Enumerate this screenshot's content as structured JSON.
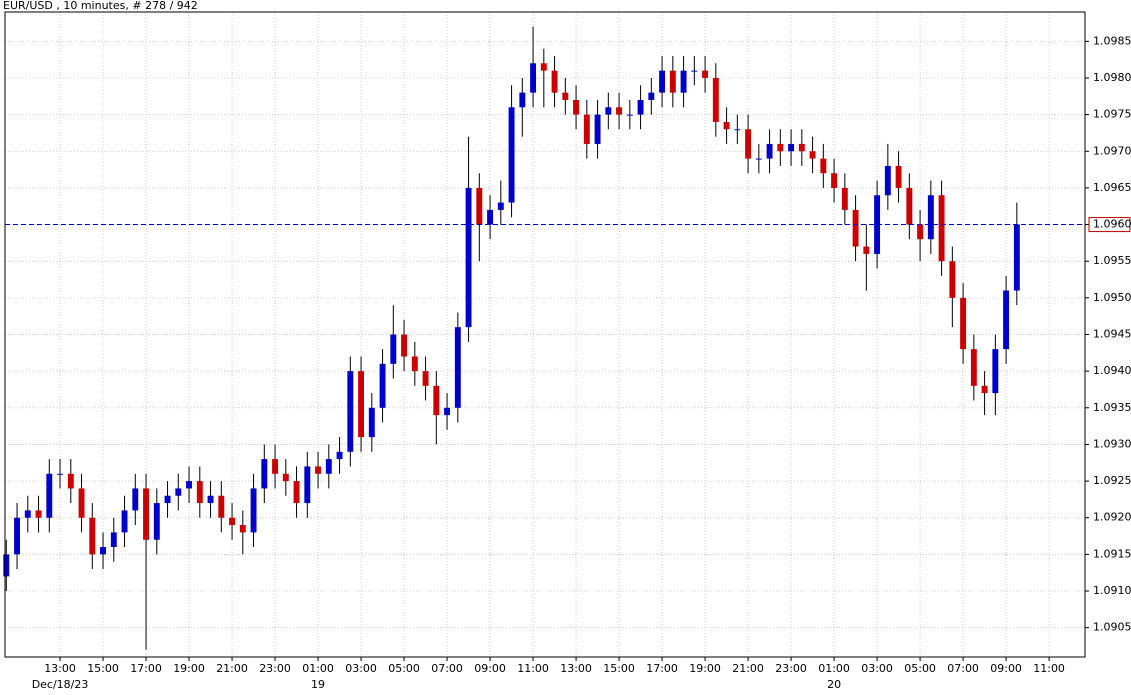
{
  "chart_data": {
    "type": "candlestick",
    "title": "EUR/USD , 10 minutes, # 278 / 942",
    "x": [
      10.5,
      11,
      11.5,
      12,
      12.5,
      13,
      13.5,
      14,
      14.5,
      15,
      15.5,
      16,
      16.5,
      17,
      17.5,
      18,
      18.5,
      19,
      19.5,
      20,
      20.5,
      21,
      21.5,
      22,
      22.5,
      23,
      23.5,
      24,
      24.5,
      25,
      25.5,
      26,
      26.5,
      27,
      27.5,
      28,
      28.5,
      29,
      29.5,
      30,
      30.5,
      31,
      31.5,
      32,
      32.5,
      33,
      33.5,
      34,
      34.5,
      35,
      35.5,
      36,
      36.5,
      37,
      37.5,
      38,
      38.5,
      39,
      39.5,
      40,
      40.5,
      41,
      41.5,
      42,
      42.5,
      43,
      43.5,
      44,
      44.5,
      45,
      45.5,
      46,
      46.5,
      47,
      47.5,
      48,
      48.5,
      49,
      49.5,
      50,
      50.5,
      51,
      51.5,
      52,
      52.5,
      53,
      53.5,
      54,
      54.5,
      55,
      55.5,
      56,
      56.5,
      57,
      57.5
    ],
    "open": [
      1.0912,
      1.0915,
      1.092,
      1.0921,
      1.092,
      1.0926,
      1.0926,
      1.0924,
      1.092,
      1.0915,
      1.0916,
      1.0918,
      1.0921,
      1.0924,
      1.0917,
      1.0922,
      1.0923,
      1.0924,
      1.0925,
      1.0922,
      1.0923,
      1.092,
      1.0919,
      1.0918,
      1.0924,
      1.0928,
      1.0926,
      1.0925,
      1.0922,
      1.0927,
      1.0926,
      1.0928,
      1.0929,
      1.094,
      1.0931,
      1.0935,
      1.0941,
      1.0945,
      1.0942,
      1.094,
      1.0938,
      1.0934,
      1.0935,
      1.0946,
      1.0965,
      1.096,
      1.0962,
      1.0963,
      1.0976,
      1.0978,
      1.0982,
      1.0981,
      1.0978,
      1.0977,
      1.0975,
      1.0971,
      1.0975,
      1.0976,
      1.0975,
      1.0975,
      1.0977,
      1.0978,
      1.0981,
      1.0978,
      1.0981,
      1.0981,
      1.098,
      1.0974,
      1.0973,
      1.0973,
      1.0969,
      1.0969,
      1.0971,
      1.097,
      1.0971,
      1.097,
      1.0969,
      1.0967,
      1.0965,
      1.0962,
      1.0957,
      1.0956,
      1.0964,
      1.0968,
      1.0965,
      1.096,
      1.0958,
      1.0964,
      1.0955,
      1.095,
      1.0943,
      1.0938,
      1.0937,
      1.0943,
      1.0951
    ],
    "high": [
      1.0917,
      1.0922,
      1.0923,
      1.0923,
      1.0928,
      1.0928,
      1.0928,
      1.0926,
      1.0922,
      1.0918,
      1.092,
      1.0923,
      1.0926,
      1.0926,
      1.0924,
      1.0925,
      1.0926,
      1.0927,
      1.0927,
      1.0925,
      1.0925,
      1.0922,
      1.0921,
      1.0926,
      1.093,
      1.093,
      1.0928,
      1.0927,
      1.0929,
      1.0929,
      1.093,
      1.0931,
      1.0942,
      1.0942,
      1.0937,
      1.0943,
      1.0949,
      1.0947,
      1.0944,
      1.0942,
      1.094,
      1.0937,
      1.0948,
      1.0972,
      1.0967,
      1.0964,
      1.0966,
      1.0979,
      1.098,
      1.0987,
      1.0984,
      1.0983,
      1.098,
      1.0979,
      1.0977,
      1.0977,
      1.0978,
      1.0978,
      1.0977,
      1.0979,
      1.098,
      1.0983,
      1.0983,
      1.0983,
      1.0983,
      1.0983,
      1.0982,
      1.0976,
      1.0975,
      1.0975,
      1.0971,
      1.0973,
      1.0973,
      1.0973,
      1.0973,
      1.0972,
      1.0971,
      1.0969,
      1.0967,
      1.0964,
      1.096,
      1.0966,
      1.0971,
      1.097,
      1.0967,
      1.0962,
      1.0966,
      1.0966,
      1.0957,
      1.0952,
      1.0945,
      1.094,
      1.0945,
      1.0953,
      1.0963
    ],
    "low": [
      1.091,
      1.0913,
      1.0918,
      1.0918,
      1.0918,
      1.0924,
      1.0922,
      1.0918,
      1.0913,
      1.0913,
      1.0914,
      1.0916,
      1.0919,
      1.0902,
      1.0915,
      1.092,
      1.0921,
      1.0922,
      1.092,
      1.092,
      1.0918,
      1.0917,
      1.0915,
      1.0916,
      1.0922,
      1.0924,
      1.0923,
      1.092,
      1.092,
      1.0924,
      1.0924,
      1.0926,
      1.0927,
      1.0929,
      1.0929,
      1.0933,
      1.0939,
      1.094,
      1.0938,
      1.0936,
      1.093,
      1.0932,
      1.0933,
      1.0944,
      1.0955,
      1.0958,
      1.096,
      1.0961,
      1.0972,
      1.0976,
      1.0976,
      1.0976,
      1.0975,
      1.0973,
      1.0969,
      1.0969,
      1.0973,
      1.0973,
      1.0973,
      1.0973,
      1.0975,
      1.0976,
      1.0976,
      1.0976,
      1.0979,
      1.0978,
      1.0972,
      1.0971,
      1.0971,
      1.0967,
      1.0967,
      1.0967,
      1.0968,
      1.0968,
      1.0968,
      1.0967,
      1.0965,
      1.0963,
      1.096,
      1.0955,
      1.0951,
      1.0954,
      1.0962,
      1.0963,
      1.0958,
      1.0955,
      1.0956,
      1.0953,
      1.0946,
      1.0941,
      1.0936,
      1.0934,
      1.0934,
      1.0941,
      1.0949
    ],
    "close": [
      1.0915,
      1.092,
      1.0921,
      1.092,
      1.0926,
      1.0926,
      1.0924,
      1.092,
      1.0915,
      1.0916,
      1.0918,
      1.0921,
      1.0924,
      1.0917,
      1.0922,
      1.0923,
      1.0924,
      1.0925,
      1.0922,
      1.0923,
      1.092,
      1.0919,
      1.0918,
      1.0924,
      1.0928,
      1.0926,
      1.0925,
      1.0922,
      1.0927,
      1.0926,
      1.0928,
      1.0929,
      1.094,
      1.0931,
      1.0935,
      1.0941,
      1.0945,
      1.0942,
      1.094,
      1.0938,
      1.0934,
      1.0935,
      1.0946,
      1.0965,
      1.096,
      1.0962,
      1.0963,
      1.0976,
      1.0978,
      1.0982,
      1.0981,
      1.0978,
      1.0977,
      1.0975,
      1.0971,
      1.0975,
      1.0976,
      1.0975,
      1.0975,
      1.0977,
      1.0978,
      1.0981,
      1.0978,
      1.0981,
      1.0981,
      1.098,
      1.0974,
      1.0973,
      1.0973,
      1.0969,
      1.0969,
      1.0971,
      1.097,
      1.0971,
      1.097,
      1.0969,
      1.0967,
      1.0965,
      1.0962,
      1.0957,
      1.0956,
      1.0964,
      1.0968,
      1.0965,
      1.096,
      1.0958,
      1.0964,
      1.0955,
      1.095,
      1.0943,
      1.0938,
      1.0937,
      1.0943,
      1.0951,
      1.096
    ],
    "up_color": "#0000cc",
    "down_color": "#cc0000",
    "xlim": [
      10.44,
      60.67
    ],
    "xticks": [
      {
        "value": 13,
        "label": "13:00"
      },
      {
        "value": 15,
        "label": "15:00"
      },
      {
        "value": 17,
        "label": "17:00"
      },
      {
        "value": 19,
        "label": "19:00"
      },
      {
        "value": 21,
        "label": "21:00"
      },
      {
        "value": 23,
        "label": "23:00"
      },
      {
        "value": 25,
        "label": "01:00"
      },
      {
        "value": 27,
        "label": "03:00"
      },
      {
        "value": 29,
        "label": "05:00"
      },
      {
        "value": 31,
        "label": "07:00"
      },
      {
        "value": 33,
        "label": "09:00"
      },
      {
        "value": 35,
        "label": "11:00"
      },
      {
        "value": 37,
        "label": "13:00"
      },
      {
        "value": 39,
        "label": "15:00"
      },
      {
        "value": 41,
        "label": "17:00"
      },
      {
        "value": 43,
        "label": "19:00"
      },
      {
        "value": 45,
        "label": "21:00"
      },
      {
        "value": 47,
        "label": "23:00"
      },
      {
        "value": 49,
        "label": "01:00"
      },
      {
        "value": 51,
        "label": "03:00"
      },
      {
        "value": 53,
        "label": "05:00"
      },
      {
        "value": 55,
        "label": "07:00"
      },
      {
        "value": 57,
        "label": "09:00"
      },
      {
        "value": 59,
        "label": "11:00"
      }
    ],
    "date_ticks": [
      {
        "value": 13,
        "label": "Dec/18/23"
      },
      {
        "value": 25,
        "label": "19"
      },
      {
        "value": 49,
        "label": "20"
      }
    ],
    "ylim": [
      1.0901,
      1.0989
    ],
    "yticks": [
      1.0905,
      {
        "value": 1.091,
        "label": "1.0910"
      },
      1.0915,
      {
        "value": 1.092,
        "label": "1.0920"
      },
      1.0925,
      {
        "value": 1.093,
        "label": "1.0930"
      },
      1.0935,
      {
        "value": 1.094,
        "label": "1.0940"
      },
      1.0945,
      {
        "value": 1.095,
        "label": "1.0950"
      },
      1.0955,
      {
        "value": 1.096,
        "label": "1.0960"
      },
      1.0965,
      {
        "value": 1.097,
        "label": "1.0970"
      },
      1.0975,
      {
        "value": 1.098,
        "label": "1.0980"
      },
      1.0985
    ],
    "last_price": {
      "value": 1.096,
      "label": "1.0960"
    },
    "grid": true
  }
}
